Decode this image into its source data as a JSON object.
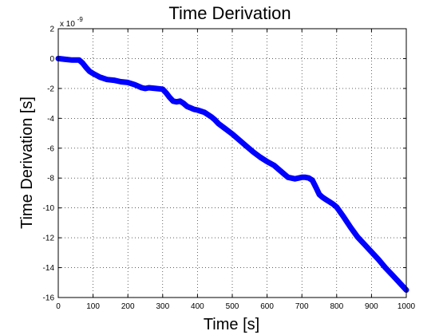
{
  "chart_data": {
    "type": "line",
    "title": "Time Derivation",
    "xlabel": "Time [s]",
    "ylabel": "Time Derivation [s]",
    "y_multiplier": {
      "base": "x 10",
      "exponent": "-9"
    },
    "xlim": [
      0,
      1000
    ],
    "ylim": [
      -16,
      2
    ],
    "grid": true,
    "x_ticks": [
      "0",
      "100",
      "200",
      "300",
      "400",
      "500",
      "600",
      "700",
      "800",
      "900",
      "1000"
    ],
    "y_ticks": [
      "2",
      "0",
      "-2",
      "-4",
      "-6",
      "-8",
      "-10",
      "-12",
      "-14",
      "-16"
    ],
    "line_color": "#0000ff",
    "series": [
      {
        "x": [
          0,
          20,
          40,
          60,
          70,
          80,
          90,
          100,
          120,
          140,
          160,
          180,
          200,
          220,
          240,
          250,
          260,
          280,
          300,
          310,
          320,
          330,
          340,
          350,
          360,
          370,
          380,
          390,
          400,
          420,
          440,
          450,
          460,
          480,
          500,
          520,
          540,
          560,
          580,
          600,
          620,
          640,
          660,
          680,
          700,
          710,
          720,
          730,
          740,
          750,
          760,
          770,
          780,
          790,
          800,
          820,
          840,
          860,
          880,
          900,
          920,
          940,
          960,
          980,
          1000
        ],
        "values": [
          0.0,
          -0.05,
          -0.1,
          -0.1,
          -0.3,
          -0.6,
          -0.85,
          -1.0,
          -1.25,
          -1.4,
          -1.45,
          -1.55,
          -1.6,
          -1.75,
          -1.95,
          -2.0,
          -1.95,
          -2.0,
          -2.05,
          -2.3,
          -2.6,
          -2.85,
          -2.9,
          -2.85,
          -3.0,
          -3.2,
          -3.3,
          -3.4,
          -3.45,
          -3.6,
          -3.9,
          -4.1,
          -4.35,
          -4.7,
          -5.05,
          -5.45,
          -5.85,
          -6.25,
          -6.6,
          -6.9,
          -7.15,
          -7.55,
          -7.95,
          -8.05,
          -7.95,
          -7.95,
          -8.0,
          -8.15,
          -8.6,
          -9.1,
          -9.3,
          -9.45,
          -9.6,
          -9.75,
          -9.95,
          -10.6,
          -11.3,
          -11.95,
          -12.45,
          -12.95,
          -13.45,
          -14.0,
          -14.5,
          -15.0,
          -15.5
        ]
      }
    ]
  }
}
